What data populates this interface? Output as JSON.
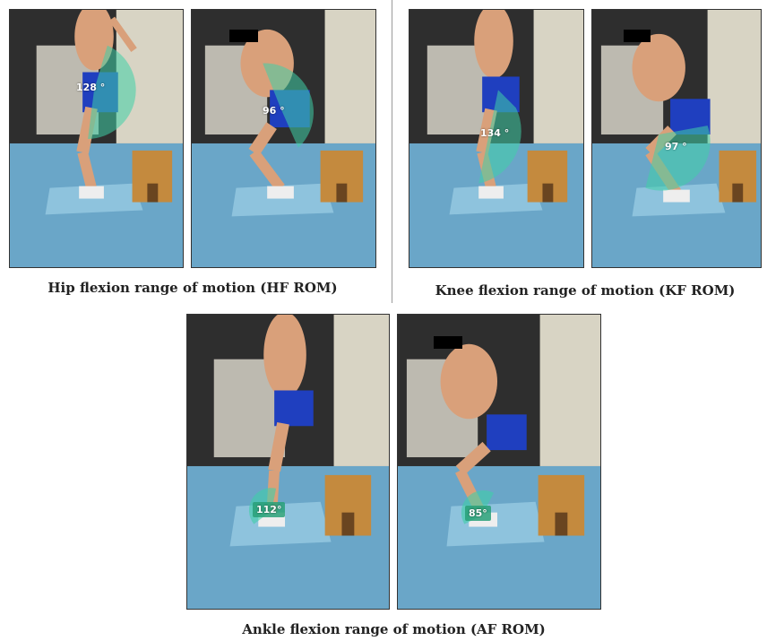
{
  "panels": [
    {
      "id": "hip-1",
      "angle": "128 °"
    },
    {
      "id": "hip-2",
      "angle": "96 °"
    },
    {
      "id": "knee-1",
      "angle": "134 °"
    },
    {
      "id": "knee-2",
      "angle": "97 °"
    },
    {
      "id": "ankle-1",
      "angle": "112°"
    },
    {
      "id": "ankle-2",
      "angle": "85°"
    }
  ],
  "captions": {
    "hip": "Hip flexion range of motion (HF ROM)",
    "knee": "Knee flexion range of motion (KF ROM)",
    "ankle": "Ankle flexion range of motion (AF ROM)"
  },
  "colors": {
    "floor": "#6aa6c8",
    "wall": "#2b2b2b",
    "box": "#c48a3e",
    "overlay": "#3fcfa8",
    "shorts": "#1f3fbf",
    "skin": "#d9a07a"
  }
}
